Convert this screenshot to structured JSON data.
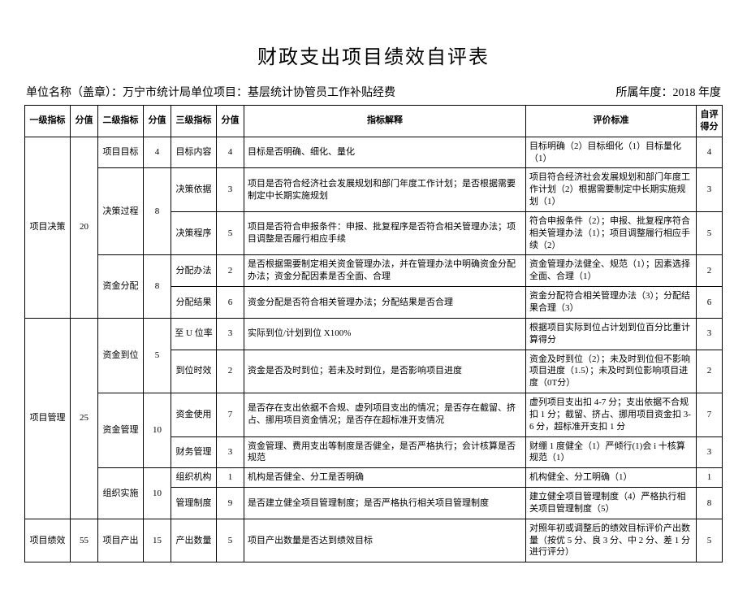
{
  "title": "财政支出项目绩效自评表",
  "meta": {
    "unit_prefix": "单位名称（盖章）：",
    "unit_text": "万宁市统计局单位项目：基层统计协管员工作补贴经费",
    "year_prefix": "所属年度：",
    "year_text": "2018 年度"
  },
  "columns": {
    "l1": "一级指标",
    "s1": "分值",
    "l2": "二级指标",
    "s2": "分值",
    "l3": "三级指标",
    "s3": "分值",
    "exp": "指标解释",
    "std": "评价标准",
    "sc": "自评得分"
  },
  "groups": [
    {
      "l1": "项目决策",
      "s1": "20",
      "subs": [
        {
          "l2": "项目目标",
          "s2": "4",
          "items": [
            {
              "l3": "目标内容",
              "s3": "4",
              "exp": "目标是否明确、细化、量化",
              "std": "目标明确（2）目标细化（1）目标量化（1）",
              "sc": "4"
            }
          ]
        },
        {
          "l2": "决策过程",
          "s2": "8",
          "items": [
            {
              "l3": "决策依据",
              "s3": "3",
              "exp": "项目是否符合经济社会发展规划和部门年度工作计划；是否根据需要制定中长期实施规划",
              "std": "项目符合经济社会发展规划和部门年度工作计划（2）根据需要制定中长期实施规划（1）",
              "sc": "3"
            },
            {
              "l3": "决策程序",
              "s3": "5",
              "exp": "项目是否符合申报条件：申报、批复程序是否符合相关管理办法；项目调整是否履行相应手续",
              "std": "符合申报条件（2）；申报、批复程序符合相关管理办法（1）；项目调整履行相应手续（2）",
              "sc": "5"
            }
          ]
        },
        {
          "l2": "资金分配",
          "s2": "8",
          "items": [
            {
              "l3": "分配办法",
              "s3": "2",
              "exp": "是否根据需要制定相关资金管理办法，并在管理办法中明确资金分配办法；资金分配因素是否全面、合理",
              "std": "资金管理办法健全、规范（1）；因素选择全面、合理（1）",
              "sc": "2"
            },
            {
              "l3": "分配结果",
              "s3": "6",
              "exp": "资金分配是否符合相关管理办法；分配结果是否合理",
              "std": "资金分配符合相关管理办法（3）；分配结果合理（3）",
              "sc": "6"
            }
          ]
        }
      ]
    },
    {
      "l1": "项目管理",
      "s1": "25",
      "subs": [
        {
          "l2": "资金到位",
          "s2": "5",
          "items": [
            {
              "l3": "至 U 位率",
              "s3": "3",
              "exp": "实际到位/计划到位 X100%",
              "std": "根据项目实际到位占计划到位百分比重计算得分",
              "sc": "3"
            },
            {
              "l3": "到位时效",
              "s3": "2",
              "exp": "资金是否及时到位；若未及时到位，是否影响项目进度",
              "std": "资金及时到位（2）；未及时到位但不影响项目进度（1.5）；未及时到位影响项目进度（0T分）",
              "sc": "2"
            }
          ]
        },
        {
          "l2": "资金管理",
          "s2": "10",
          "items": [
            {
              "l3": "资金使用",
              "s3": "7",
              "exp": "是否存在支出依据不合规、虚列项目支出的情况；是否存在截留、挤占、挪用项目资金情况；是否存在超标准开支情况",
              "std": "虚列项目支出扣 4-7 分；支出依据不合规扣 1 分；截留、挤占、挪用项目资金扣 3-6 分，超标准开支扣 1 分",
              "sc": "7"
            },
            {
              "l3": "财务管理",
              "s3": "3",
              "exp": "资金管理、费用支出等制度是否健全，是否严格执行；会计核算是否规范",
              "std": "财绷 1 度健全（1）严倾行(1)会 i 十核算规范（1）",
              "sc": "3"
            }
          ]
        },
        {
          "l2": "组织实施",
          "s2": "10",
          "items": [
            {
              "l3": "组织机构",
              "s3": "1",
              "exp": "机构是否健全、分工是否明确",
              "std": "机构健全、分工明确（1）",
              "sc": "1"
            },
            {
              "l3": "管理制度",
              "s3": "9",
              "exp": "是否建立健全项目管理制度；是否严格执行相关项目管理制度",
              "std": "建立健全项目管理制度（4）严格执行相关项目管理制度（5）",
              "sc": "8"
            }
          ]
        }
      ]
    },
    {
      "l1": "项目绩效",
      "s1": "55",
      "subs": [
        {
          "l2": "项目产出",
          "s2": "15",
          "items": [
            {
              "l3": "产出数量",
              "s3": "5",
              "exp": "项目产出数量是否达到绩效目标",
              "std": "对照年初或调整后的绩效目标评价产出数量（按优 5 分、良 3 分、中 2 分、差 1 分进行评分）",
              "sc": "5"
            }
          ]
        }
      ]
    }
  ]
}
